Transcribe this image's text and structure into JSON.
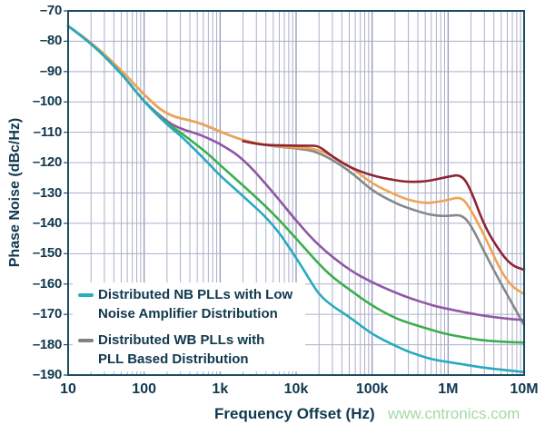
{
  "watermark": {
    "text": "www.cntronics.com",
    "color": "#a6d8a2"
  },
  "chart_data": {
    "type": "line",
    "x_scale": "log",
    "xlim": [
      10,
      10000000
    ],
    "ylim": [
      -190,
      -70
    ],
    "xlabel": "Frequency Offset (Hz)",
    "ylabel": "Phase Noise (dBc/Hz)",
    "grid": {
      "horizontal_step_db": 10,
      "log_minor_vertical": true,
      "minor_color": "#abafc9",
      "major_color": "#9298b8"
    },
    "frame_color": "#1b4c63",
    "label_color": "#10384f",
    "x_ticks": [
      {
        "f": 10,
        "label": "10"
      },
      {
        "f": 100,
        "label": "100"
      },
      {
        "f": 1000,
        "label": "1k"
      },
      {
        "f": 10000,
        "label": "10k"
      },
      {
        "f": 100000,
        "label": "100k"
      },
      {
        "f": 1000000,
        "label": "1M"
      },
      {
        "f": 10000000,
        "label": "10M"
      }
    ],
    "y_ticks": [
      {
        "v": -70,
        "label": "–70"
      },
      {
        "v": -80,
        "label": "–80"
      },
      {
        "v": -90,
        "label": "–90"
      },
      {
        "v": -100,
        "label": "–100"
      },
      {
        "v": -110,
        "label": "–110"
      },
      {
        "v": -120,
        "label": "–120"
      },
      {
        "v": -130,
        "label": "–130"
      },
      {
        "v": -140,
        "label": "–140"
      },
      {
        "v": -150,
        "label": "–150"
      },
      {
        "v": -160,
        "label": "–160"
      },
      {
        "v": -170,
        "label": "–170"
      },
      {
        "v": -180,
        "label": "–180"
      },
      {
        "v": -190,
        "label": "–190"
      }
    ],
    "series": [
      {
        "id": "wb-plls-pll-distribution",
        "name": "Distributed WB PLLs with PLL Based Distribution",
        "color": "#85878a",
        "points": [
          [
            10,
            -75
          ],
          [
            20,
            -80.2
          ],
          [
            50,
            -89.5
          ],
          [
            100,
            -97.7
          ],
          [
            200,
            -104.5
          ],
          [
            500,
            -106.5
          ],
          [
            1000,
            -109.8
          ],
          [
            2000,
            -112.7
          ],
          [
            5000,
            -114.7
          ],
          [
            10000,
            -115.2
          ],
          [
            20000,
            -116.5
          ],
          [
            50000,
            -122.5
          ],
          [
            100000,
            -129.3
          ],
          [
            200000,
            -133.3
          ],
          [
            300000,
            -135
          ],
          [
            500000,
            -136.8
          ],
          [
            700000,
            -137.5
          ],
          [
            1000000,
            -137.6
          ],
          [
            1500000,
            -137.1
          ],
          [
            2000000,
            -140.5
          ],
          [
            3000000,
            -149.5
          ],
          [
            5000000,
            -160
          ],
          [
            7000000,
            -166.5
          ],
          [
            10000000,
            -173.5
          ]
        ]
      },
      {
        "id": "orange-curve",
        "name": "Orange curve",
        "color": "#efa355",
        "points": [
          [
            10,
            -75
          ],
          [
            20,
            -80.2
          ],
          [
            50,
            -89.5
          ],
          [
            100,
            -97.7
          ],
          [
            200,
            -104.5
          ],
          [
            500,
            -106.5
          ],
          [
            1000,
            -109.8
          ],
          [
            2000,
            -112.7
          ],
          [
            5000,
            -114.6
          ],
          [
            10000,
            -115
          ],
          [
            20000,
            -115.5
          ],
          [
            50000,
            -121
          ],
          [
            100000,
            -127
          ],
          [
            200000,
            -130.5
          ],
          [
            300000,
            -132.3
          ],
          [
            500000,
            -133.4
          ],
          [
            700000,
            -133
          ],
          [
            1000000,
            -132.3
          ],
          [
            1500000,
            -131.2
          ],
          [
            2000000,
            -135.5
          ],
          [
            3000000,
            -144
          ],
          [
            5000000,
            -156
          ],
          [
            7000000,
            -161
          ],
          [
            10000000,
            -163.3
          ]
        ]
      },
      {
        "id": "darkred-curve",
        "name": "Dark red curve",
        "color": "#8e2434",
        "points": [
          [
            2000,
            -112.9
          ],
          [
            3000,
            -113.9
          ],
          [
            5000,
            -114.3
          ],
          [
            10000,
            -114.4
          ],
          [
            15000,
            -114.4
          ],
          [
            20000,
            -114.5
          ],
          [
            30000,
            -118
          ],
          [
            50000,
            -121.5
          ],
          [
            100000,
            -124.3
          ],
          [
            200000,
            -125.8
          ],
          [
            300000,
            -126.4
          ],
          [
            500000,
            -126.2
          ],
          [
            700000,
            -125.5
          ],
          [
            1000000,
            -124.6
          ],
          [
            1500000,
            -123.9
          ],
          [
            2000000,
            -129
          ],
          [
            3000000,
            -141
          ],
          [
            5000000,
            -150
          ],
          [
            7000000,
            -154
          ],
          [
            10000000,
            -155.3
          ]
        ]
      },
      {
        "id": "purple-curve",
        "name": "Purple curve",
        "color": "#9057a5",
        "points": [
          [
            10,
            -75
          ],
          [
            20,
            -80.5
          ],
          [
            50,
            -90.5
          ],
          [
            100,
            -100
          ],
          [
            200,
            -106.5
          ],
          [
            300,
            -108.8
          ],
          [
            500,
            -110.5
          ],
          [
            700,
            -112
          ],
          [
            1000,
            -113.8
          ],
          [
            2000,
            -118.6
          ],
          [
            5000,
            -129.8
          ],
          [
            10000,
            -139.2
          ],
          [
            20000,
            -147.5
          ],
          [
            50000,
            -155.4
          ],
          [
            100000,
            -159.5
          ],
          [
            200000,
            -162.8
          ],
          [
            300000,
            -164.5
          ],
          [
            500000,
            -166.3
          ],
          [
            700000,
            -167.4
          ],
          [
            1000000,
            -168.2
          ],
          [
            1500000,
            -169.1
          ],
          [
            2000000,
            -169.7
          ],
          [
            3000000,
            -170.5
          ],
          [
            5000000,
            -171.2
          ],
          [
            7000000,
            -171.6
          ],
          [
            10000000,
            -171.9
          ]
        ]
      },
      {
        "id": "green-curve",
        "name": "Green curve",
        "color": "#3cae4e",
        "points": [
          [
            10,
            -75
          ],
          [
            20,
            -80.5
          ],
          [
            50,
            -90.5
          ],
          [
            100,
            -100
          ],
          [
            200,
            -107
          ],
          [
            300,
            -110
          ],
          [
            500,
            -114.3
          ],
          [
            700,
            -117.2
          ],
          [
            1000,
            -120.8
          ],
          [
            2000,
            -127.5
          ],
          [
            5000,
            -136.7
          ],
          [
            10000,
            -145
          ],
          [
            20000,
            -153.5
          ],
          [
            30000,
            -157.7
          ],
          [
            50000,
            -161.8
          ],
          [
            100000,
            -167.2
          ],
          [
            200000,
            -171.2
          ],
          [
            300000,
            -172.8
          ],
          [
            500000,
            -174.5
          ],
          [
            700000,
            -175.6
          ],
          [
            1000000,
            -176.6
          ],
          [
            1500000,
            -177.4
          ],
          [
            2000000,
            -178
          ],
          [
            3000000,
            -178.6
          ],
          [
            5000000,
            -179
          ],
          [
            7000000,
            -179.2
          ],
          [
            10000000,
            -179.3
          ]
        ]
      },
      {
        "id": "nb-plls-lna-distribution",
        "name": "Distributed NB PLLs with Low Noise Amplifier Distribution",
        "color": "#27aabf",
        "points": [
          [
            10,
            -75
          ],
          [
            20,
            -80.5
          ],
          [
            50,
            -90.5
          ],
          [
            100,
            -100
          ],
          [
            200,
            -107.5
          ],
          [
            300,
            -111
          ],
          [
            500,
            -116.5
          ],
          [
            700,
            -120.2
          ],
          [
            1000,
            -124.3
          ],
          [
            2000,
            -131
          ],
          [
            5000,
            -140.2
          ],
          [
            10000,
            -151.3
          ],
          [
            15000,
            -158.5
          ],
          [
            20000,
            -163.5
          ],
          [
            30000,
            -167.3
          ],
          [
            50000,
            -170.8
          ],
          [
            100000,
            -176.6
          ],
          [
            200000,
            -180.3
          ],
          [
            300000,
            -182.3
          ],
          [
            500000,
            -184.2
          ],
          [
            700000,
            -185.1
          ],
          [
            1000000,
            -185.7
          ],
          [
            1500000,
            -186.4
          ],
          [
            2000000,
            -186.9
          ],
          [
            3000000,
            -187.6
          ],
          [
            5000000,
            -188.2
          ],
          [
            7000000,
            -188.6
          ],
          [
            10000000,
            -189
          ]
        ]
      }
    ],
    "legend": {
      "entries": [
        {
          "series_id": "nb-plls-lna-distribution",
          "marker_color": "#29aebf",
          "line1": "Distributed NB PLLs with Low",
          "line2": "Noise Amplifier Distribution"
        },
        {
          "series_id": "wb-plls-pll-distribution",
          "marker_color": "#7f8387",
          "line1": "Distributed WB PLLs with",
          "line2": "PLL Based Distribution"
        }
      ]
    }
  }
}
